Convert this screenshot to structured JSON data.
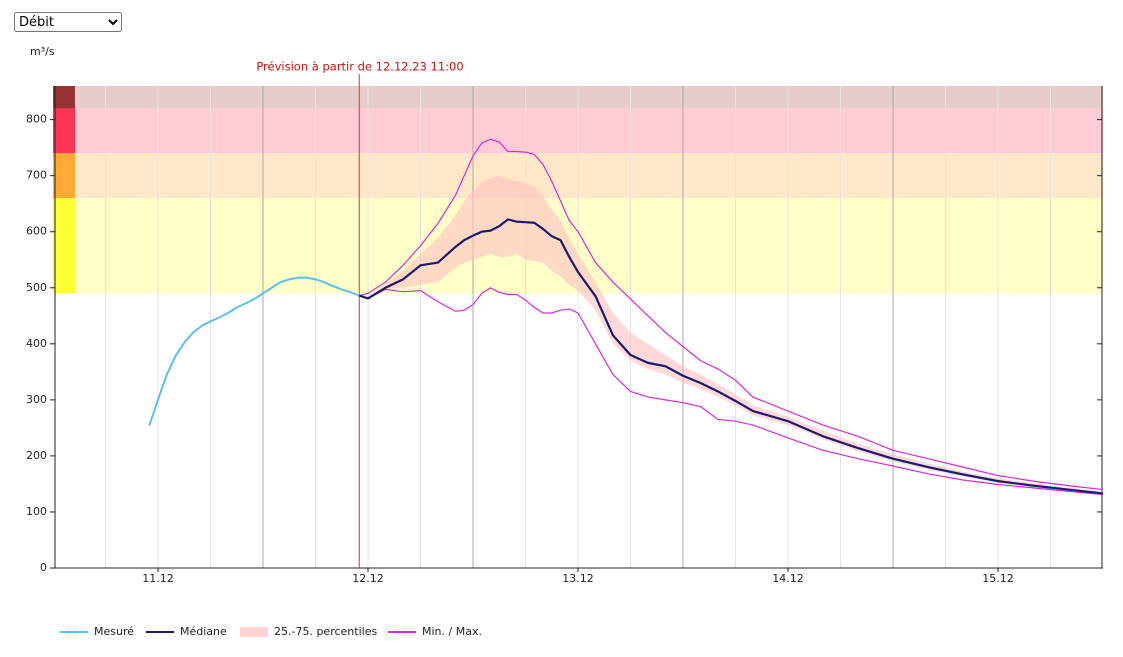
{
  "select": {
    "value": "Débit"
  },
  "chart_data": {
    "type": "line",
    "ylabel": "m³/s",
    "annotation": "Prévision à partir de 12.12.23 11:00",
    "forecast_x": 35,
    "xlim": [
      0,
      120
    ],
    "xticks": [
      {
        "value": 12,
        "label": "11.12"
      },
      {
        "value": 36,
        "label": "12.12"
      },
      {
        "value": 60,
        "label": "13.12"
      },
      {
        "value": 84,
        "label": "14.12"
      },
      {
        "value": 108,
        "label": "15.12"
      }
    ],
    "xgrid_major": [
      24,
      48,
      72,
      96
    ],
    "xgrid_minor": [
      6,
      12,
      18,
      30,
      36,
      42,
      54,
      60,
      66,
      78,
      84,
      90,
      102,
      108,
      114
    ],
    "ylim": [
      0,
      860
    ],
    "yticks": [
      0,
      100,
      200,
      300,
      400,
      500,
      600,
      700,
      800
    ],
    "thresholds": [
      {
        "from": 490,
        "to": 660,
        "color": "#ffff33",
        "fill": "#ffffc8"
      },
      {
        "from": 660,
        "to": 740,
        "color": "#ffaa33",
        "fill": "#ffe8c8"
      },
      {
        "from": 740,
        "to": 820,
        "color": "#ff3355",
        "fill": "#ffccd6"
      },
      {
        "from": 820,
        "to": 860,
        "color": "#993333",
        "fill": "#e6cccc"
      }
    ],
    "series": [
      {
        "name": "Mesuré",
        "color": "#5bc0eb",
        "x": [
          11,
          12,
          13,
          14,
          15,
          16,
          17,
          18,
          19,
          20,
          21,
          22,
          23,
          24,
          25,
          26,
          27,
          28,
          29,
          30,
          31,
          32,
          33,
          34,
          35
        ],
        "values": [
          254,
          300,
          345,
          378,
          402,
          420,
          432,
          440,
          447,
          455,
          465,
          472,
          480,
          490,
          500,
          510,
          515,
          518,
          518,
          515,
          510,
          503,
          497,
          492,
          486
        ]
      },
      {
        "name": "Médiane",
        "color": "#1a1a6e",
        "x": [
          35,
          36,
          38,
          40,
          42,
          44,
          46,
          47,
          48,
          49,
          50,
          51,
          52,
          53,
          54,
          55,
          56,
          57,
          58,
          59,
          60,
          62,
          64,
          66,
          68,
          70,
          72,
          74,
          76,
          78,
          80,
          84,
          88,
          92,
          96,
          100,
          104,
          108,
          112,
          116,
          120
        ],
        "values": [
          486,
          481,
          500,
          515,
          540,
          545,
          573,
          585,
          593,
          600,
          602,
          610,
          622,
          618,
          617,
          616,
          605,
          592,
          585,
          555,
          528,
          485,
          415,
          380,
          366,
          360,
          343,
          330,
          315,
          298,
          280,
          262,
          235,
          214,
          195,
          180,
          167,
          155,
          147,
          140,
          133
        ]
      },
      {
        "name": "25.-75. percentiles",
        "type": "band",
        "color": "#ffc0c0",
        "x": [
          35,
          36,
          38,
          40,
          42,
          44,
          46,
          47,
          48,
          49,
          50,
          51,
          52,
          53,
          54,
          55,
          56,
          57,
          58,
          59,
          60,
          62,
          64,
          66,
          68,
          70,
          72,
          74,
          76,
          78,
          80,
          84,
          88,
          92,
          96,
          100,
          104,
          108,
          112,
          116,
          120
        ],
        "low": [
          486,
          480,
          497,
          500,
          505,
          510,
          535,
          545,
          550,
          555,
          560,
          555,
          555,
          560,
          550,
          548,
          545,
          530,
          520,
          505,
          495,
          460,
          400,
          370,
          355,
          345,
          330,
          320,
          305,
          290,
          272,
          255,
          230,
          208,
          190,
          175,
          163,
          152,
          145,
          138,
          131
        ],
        "high": [
          486,
          484,
          505,
          530,
          560,
          590,
          630,
          655,
          672,
          688,
          695,
          700,
          695,
          690,
          688,
          680,
          665,
          640,
          620,
          590,
          560,
          510,
          455,
          420,
          400,
          380,
          360,
          345,
          328,
          310,
          290,
          270,
          245,
          222,
          203,
          187,
          172,
          160,
          151,
          143,
          136
        ]
      },
      {
        "name": "Min. / Max.",
        "type": "range_lines",
        "color": "#d62ad6",
        "x": [
          35,
          36,
          38,
          40,
          42,
          44,
          46,
          47,
          48,
          49,
          50,
          51,
          52,
          53,
          54,
          55,
          56,
          57,
          58,
          59,
          60,
          62,
          64,
          66,
          68,
          70,
          72,
          74,
          76,
          78,
          80,
          84,
          88,
          92,
          96,
          100,
          104,
          108,
          112,
          116,
          120
        ],
        "low": [
          486,
          481,
          497,
          493,
          495,
          475,
          458,
          460,
          470,
          490,
          500,
          492,
          488,
          488,
          478,
          465,
          455,
          455,
          460,
          462,
          455,
          400,
          345,
          315,
          305,
          300,
          295,
          288,
          265,
          262,
          255,
          232,
          210,
          195,
          182,
          168,
          157,
          149,
          143,
          137,
          131
        ],
        "high": [
          486,
          490,
          510,
          540,
          575,
          615,
          665,
          700,
          735,
          758,
          765,
          760,
          743,
          743,
          742,
          738,
          720,
          690,
          655,
          620,
          600,
          545,
          510,
          480,
          450,
          420,
          395,
          370,
          355,
          335,
          305,
          280,
          255,
          235,
          210,
          195,
          180,
          165,
          155,
          147,
          140
        ]
      }
    ]
  }
}
